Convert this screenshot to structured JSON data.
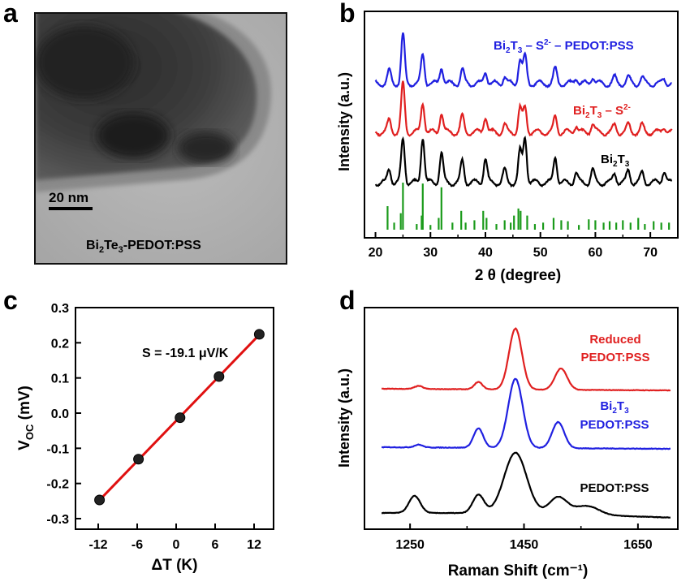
{
  "panels": {
    "a": {
      "letter": "a",
      "scale_bar": "20 nm",
      "caption_prefix": "Bi",
      "caption_sub1": "2",
      "caption_mid": "Te",
      "caption_sub2": "3",
      "caption_suffix": "-PEDOT:PSS"
    },
    "b": {
      "letter": "b"
    },
    "c": {
      "letter": "c"
    },
    "d": {
      "letter": "d"
    }
  },
  "chart_data": [
    {
      "panel": "b",
      "type": "line",
      "xlabel": "2 θ (degree)",
      "ylabel": "Intensity (a.u.)",
      "xlim": [
        18,
        75
      ],
      "xticks": [
        20,
        30,
        40,
        50,
        60,
        70
      ],
      "peaks": [
        22.5,
        25,
        28.6,
        32,
        35.8,
        40,
        43.5,
        46.3,
        47.2,
        52.7,
        56.5,
        59.5,
        63.5,
        66,
        68.5,
        72.5
      ],
      "series": [
        {
          "name": "Bi₂T₃ – S²⁻ – PEDOT:PSS",
          "label_parts": [
            "Bi",
            "2",
            "T",
            "3",
            " – S",
            "2-",
            " – PEDOT:PSS"
          ],
          "color": "#2020e0",
          "peak_heights": [
            0.25,
            1.0,
            0.6,
            0.35,
            0.28,
            0.25,
            0.15,
            0.5,
            0.55,
            0.3,
            0.12,
            0.15,
            0.12,
            0.12,
            0.12,
            0.1
          ]
        },
        {
          "name": "Bi₂T₃ – S²⁻",
          "label_parts": [
            "Bi",
            "2",
            "T",
            "3",
            " – S",
            "2-"
          ],
          "color": "#e02020",
          "peak_heights": [
            0.25,
            1.0,
            0.62,
            0.4,
            0.32,
            0.33,
            0.15,
            0.5,
            0.52,
            0.32,
            0.15,
            0.18,
            0.14,
            0.15,
            0.14,
            0.12
          ]
        },
        {
          "name": "Bi₂T₃",
          "label_parts": [
            "Bi",
            "2",
            "T",
            "3"
          ],
          "color": "#000000",
          "peak_heights": [
            0.28,
            0.9,
            0.95,
            0.6,
            0.45,
            0.5,
            0.25,
            0.65,
            0.95,
            0.55,
            0.2,
            0.25,
            0.2,
            0.25,
            0.2,
            0.25
          ]
        }
      ],
      "reference": {
        "color": "#1a9a1a",
        "x": [
          22.2,
          23.4,
          24.6,
          25.0,
          27.5,
          28.4,
          28.6,
          30.0,
          31.5,
          32.0,
          34.0,
          35.6,
          36.4,
          38.0,
          39.6,
          40.2,
          42.0,
          43.5,
          44.6,
          45.2,
          46.0,
          46.4,
          47.6,
          49.0,
          50.5,
          52.4,
          53.8,
          55.0,
          57.0,
          58.8,
          60.0,
          61.5,
          62.6,
          63.8,
          65.0,
          66.4,
          67.8,
          69.0,
          70.6,
          72.0,
          73.4
        ],
        "h": [
          0.5,
          0.15,
          0.35,
          1.0,
          0.12,
          0.3,
          0.98,
          0.1,
          0.25,
          0.9,
          0.15,
          0.4,
          0.15,
          0.2,
          0.4,
          0.25,
          0.12,
          0.2,
          0.15,
          0.3,
          0.45,
          0.4,
          0.3,
          0.12,
          0.15,
          0.25,
          0.2,
          0.18,
          0.1,
          0.22,
          0.2,
          0.15,
          0.18,
          0.15,
          0.2,
          0.15,
          0.25,
          0.12,
          0.18,
          0.15,
          0.15
        ]
      }
    },
    {
      "panel": "c",
      "type": "scatter",
      "xlabel": "ΔT (K)",
      "ylabel_main": "V",
      "ylabel_sub": "OC",
      "ylabel_unit": " (mV)",
      "annotation": "S = -19.1 μV/K",
      "xlim": [
        -15.5,
        15
      ],
      "ylim": [
        -0.33,
        0.3
      ],
      "xticks": [
        -12,
        -6,
        0,
        6,
        12
      ],
      "yticks": [
        -0.3,
        -0.2,
        -0.1,
        0.0,
        0.1,
        0.2,
        0.3
      ],
      "ytick_labels": [
        "-0.3",
        "-0.2",
        "-0.1",
        "0.0",
        "0.1",
        "0.2",
        "0.3"
      ],
      "points": [
        {
          "x": -11.8,
          "y": -0.247
        },
        {
          "x": -5.8,
          "y": -0.131
        },
        {
          "x": 0.6,
          "y": -0.013
        },
        {
          "x": 6.6,
          "y": 0.104
        },
        {
          "x": 12.8,
          "y": 0.224
        }
      ],
      "fit_color": "#e01010"
    },
    {
      "panel": "d",
      "type": "line",
      "xlabel": "Raman Shift (cm⁻¹)",
      "ylabel": "Intensity (a.u.)",
      "xlim": [
        1170,
        1720
      ],
      "xticks": [
        1250,
        1450,
        1650
      ],
      "series": [
        {
          "name": "Reduced PEDOT:PSS",
          "label_lines": [
            "Reduced",
            "PEDOT:PSS"
          ],
          "color": "#e02020",
          "peaks": [
            [
              1265,
              0.05,
              10
            ],
            [
              1370,
              0.12,
              10
            ],
            [
              1435,
              1.0,
              16
            ],
            [
              1515,
              0.35,
              15
            ]
          ]
        },
        {
          "name": "Bi₂T₃ PEDOT:PSS",
          "label_parts": [
            "Bi",
            "2",
            "T",
            "3"
          ],
          "label_line2": "PEDOT:PSS",
          "color": "#2020e0",
          "peaks": [
            [
              1265,
              0.04,
              10
            ],
            [
              1370,
              0.28,
              12
            ],
            [
              1435,
              1.0,
              18
            ],
            [
              1510,
              0.38,
              15
            ]
          ]
        },
        {
          "name": "PEDOT:PSS",
          "label": "PEDOT:PSS",
          "color": "#000000",
          "peaks": [
            [
              1258,
              0.28,
              14
            ],
            [
              1370,
              0.3,
              14
            ],
            [
              1435,
              1.0,
              28
            ],
            [
              1510,
              0.28,
              22
            ],
            [
              1560,
              0.15,
              30
            ]
          ]
        }
      ]
    }
  ]
}
